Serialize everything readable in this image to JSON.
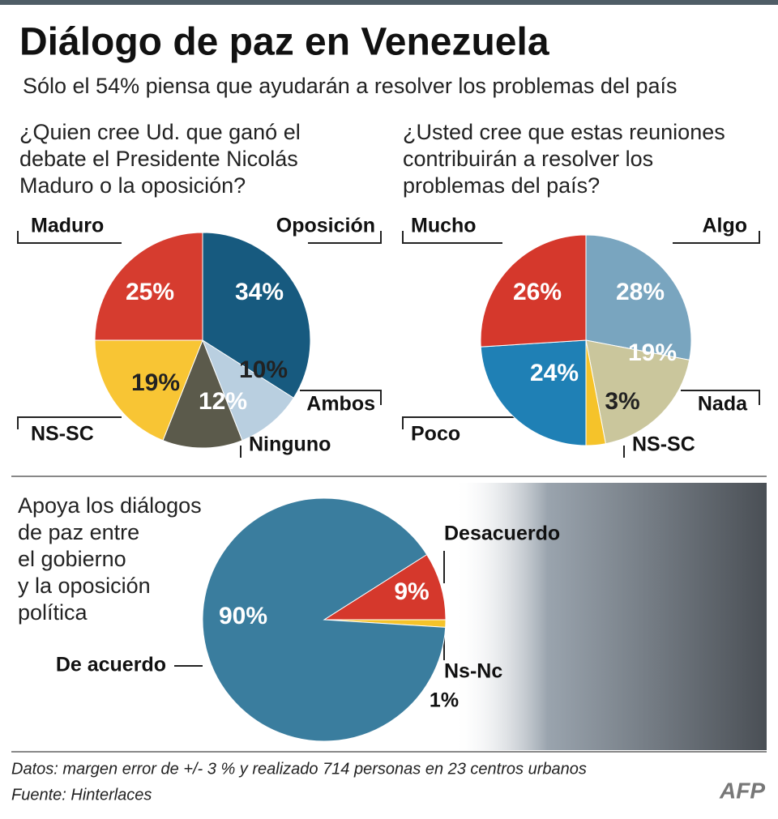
{
  "title": "Diálogo de paz en Venezuela",
  "subtitle": "Sólo el 54% piensa que ayudarán a resolver los problemas del país",
  "note": "Datos: margen error de +/- 3 % y realizado 714 personas en 23 centros urbanos",
  "source": "Fuente: Hinterlaces",
  "logo": "AFP",
  "chart_data": [
    {
      "type": "pie",
      "title": [
        "¿Quien cree Ud. que ganó el",
        "debate el Presidente Nicolás",
        "Maduro o la oposición?"
      ],
      "categories": [
        "Oposición",
        "Ambos",
        "Ninguno",
        "NS-SC",
        "Maduro"
      ],
      "values": [
        34,
        10,
        12,
        19,
        25
      ],
      "value_labels": [
        "34%",
        "10%",
        "12%",
        "19%",
        "25%"
      ],
      "colors": [
        "#175a7f",
        "#b9cfe0",
        "#5b5a4b",
        "#f8c534",
        "#d63c2f"
      ]
    },
    {
      "type": "pie",
      "title": [
        "¿Usted cree que estas reuniones",
        "contribuirán a resolver los",
        "problemas del país?"
      ],
      "categories": [
        "Algo",
        "Nada",
        "NS-SC",
        "Poco",
        "Mucho"
      ],
      "values": [
        28,
        19,
        3,
        24,
        26
      ],
      "value_labels": [
        "28%",
        "19%",
        "3%",
        "24%",
        "26%"
      ],
      "colors": [
        "#79a5bf",
        "#cac69c",
        "#f5c32a",
        "#1f80b5",
        "#d5382c"
      ]
    },
    {
      "type": "pie",
      "title": [
        "Apoya los diálogos",
        "de paz entre",
        "el gobierno",
        "y la oposición",
        "política"
      ],
      "categories": [
        "Desacuerdo",
        "Ns-Nc",
        "De acuerdo"
      ],
      "values": [
        9,
        1,
        90
      ],
      "value_labels": [
        "9%",
        "1%",
        "90%"
      ],
      "colors": [
        "#d5382c",
        "#f5c32a",
        "#3a7d9e"
      ]
    }
  ]
}
